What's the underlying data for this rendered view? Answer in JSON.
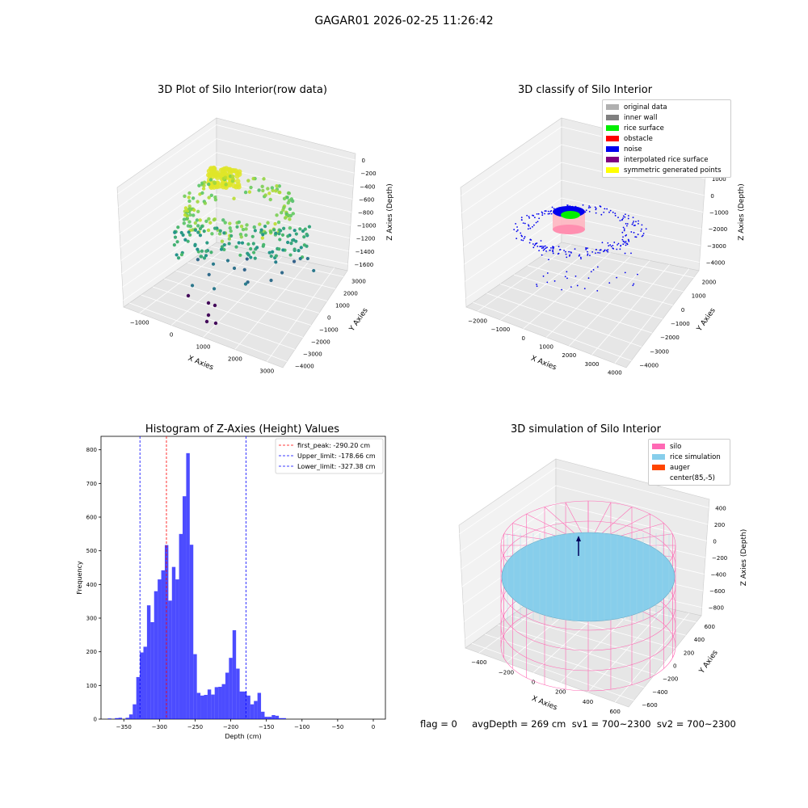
{
  "suptitle": "GAGAR01 2026-02-25 11:26:42",
  "footer": "flag = 0     avgDepth = 269 cm  sv1 = 700~2300  sv2 = 700~2300",
  "panels": {
    "raw": {
      "title": "3D Plot of Silo Interior(row data)",
      "xlabel": "X Axies",
      "ylabel": "Y Axies",
      "zlabel": "Z Axies (Depth)",
      "xticks": [
        "−1000",
        "0",
        "1000",
        "2000",
        "3000"
      ],
      "yticks": [
        "3000",
        "2000",
        "1000",
        "0",
        "−1000",
        "−2000",
        "−3000",
        "−4000"
      ],
      "zticks": [
        "0",
        "−200",
        "−400",
        "−600",
        "−800",
        "−1000",
        "−1200",
        "−1400",
        "−1600"
      ]
    },
    "classify": {
      "title": "3D classify of Silo Interior",
      "xlabel": "X Axies",
      "ylabel": "Y Axies",
      "zlabel": "Z Axies (Depth)",
      "xticks": [
        "−2000",
        "−1000",
        "0",
        "1000",
        "2000",
        "3000",
        "4000"
      ],
      "yticks": [
        "2000",
        "1000",
        "0",
        "−1000",
        "−2000",
        "−3000",
        "−4000"
      ],
      "zticks": [
        "2000",
        "1000",
        "0",
        "−1000",
        "−2000",
        "−3000",
        "−4000"
      ],
      "legend": [
        {
          "label": "original data",
          "color": "#b0b0b0"
        },
        {
          "label": "inner wall",
          "color": "#808080"
        },
        {
          "label": "rice surface",
          "color": "#00ee00"
        },
        {
          "label": "obstacle",
          "color": "#ff0000"
        },
        {
          "label": "noise",
          "color": "#0000ee"
        },
        {
          "label": "interpolated rice surface",
          "color": "#800080"
        },
        {
          "label": "symmetric generated points",
          "color": "#ffff00"
        }
      ]
    },
    "simulation": {
      "title": "3D simulation of Silo Interior",
      "xlabel": "X Axies",
      "ylabel": "Y Axies",
      "zlabel": "Z Axies (Depth)",
      "xticks": [
        "−400",
        "−200",
        "0",
        "200",
        "400",
        "600"
      ],
      "yticks": [
        "600",
        "400",
        "200",
        "0",
        "−200",
        "−400",
        "−600"
      ],
      "zticks": [
        "400",
        "200",
        "0",
        "−200",
        "−400",
        "−600",
        "−800"
      ],
      "legend": [
        {
          "label": "silo",
          "color": "#ff69b4"
        },
        {
          "label": "rice simulation",
          "color": "#87ceeb"
        },
        {
          "label": "auger",
          "color": "#ff4500"
        },
        {
          "label": "center(85,-5)",
          "color": ""
        }
      ]
    }
  },
  "chart_data": {
    "type": "bar",
    "title": "Histogram of Z-Axies (Height) Values",
    "xlabel": "Depth (cm)",
    "ylabel": "Frequency",
    "xlim": [
      -382,
      17
    ],
    "ylim": [
      0,
      840
    ],
    "xticks": [
      -350,
      -300,
      -250,
      -200,
      -150,
      -100,
      -50,
      0
    ],
    "xtick_labels": [
      "−350",
      "−300",
      "−250",
      "−200",
      "−150",
      "−100",
      "−50",
      "0"
    ],
    "yticks": [
      0,
      100,
      200,
      300,
      400,
      500,
      600,
      700,
      800
    ],
    "bar_color": "#0000ff",
    "bin_start": -372.5,
    "bin_width": 5,
    "values": [
      2,
      0,
      3,
      4,
      0,
      4,
      14,
      44,
      125,
      198,
      215,
      338,
      288,
      380,
      415,
      442,
      517,
      352,
      452,
      415,
      550,
      662,
      790,
      518,
      193,
      78,
      70,
      72,
      88,
      73,
      95,
      96,
      104,
      138,
      182,
      264,
      150,
      82,
      82,
      70,
      44,
      54,
      78,
      22,
      7,
      7,
      12,
      10,
      3,
      3
    ],
    "vlines": [
      {
        "x": -290.2,
        "color": "#ff0000",
        "label": "first_peak: -290.20 cm"
      },
      {
        "x": -178.66,
        "color": "#0000ff",
        "label": "Upper_limit: -178.66 cm"
      },
      {
        "x": -327.38,
        "color": "#0000ff",
        "label": "Lower_limit: -327.38 cm"
      }
    ]
  }
}
